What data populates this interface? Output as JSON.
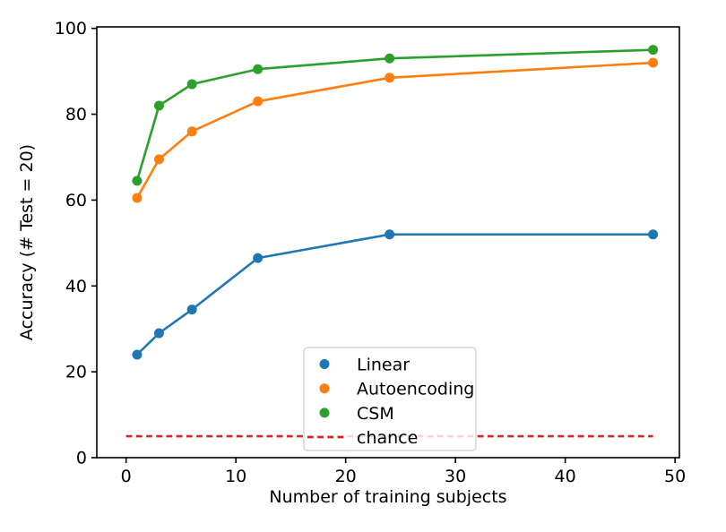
{
  "chart_data": {
    "type": "line",
    "title": "",
    "xlabel": "Number of training subjects",
    "ylabel": "Accuracy (# Test = 20)",
    "x": [
      1,
      3,
      6,
      12,
      24,
      48
    ],
    "series": [
      {
        "name": "Linear",
        "color": "#1f77b4",
        "marker": "circle",
        "line": "solid",
        "values": [
          24,
          29,
          34.5,
          46.5,
          52,
          52
        ]
      },
      {
        "name": "Autoencoding",
        "color": "#ff7f0e",
        "marker": "circle",
        "line": "solid",
        "values": [
          60.5,
          69.5,
          76,
          83,
          88.5,
          92
        ]
      },
      {
        "name": "CSM",
        "color": "#2ca02c",
        "marker": "circle",
        "line": "solid",
        "values": [
          64.5,
          82,
          87,
          90.5,
          93,
          95
        ]
      }
    ],
    "reference_line": {
      "name": "chance",
      "color": "#d62728",
      "line": "dashed",
      "value": 5,
      "x_span": [
        0,
        48
      ]
    },
    "xticks": [
      "0",
      "10",
      "20",
      "30",
      "40",
      "50"
    ],
    "xtick_values": [
      0,
      10,
      20,
      30,
      40,
      50
    ],
    "yticks": [
      "0",
      "20",
      "40",
      "60",
      "80",
      "100"
    ],
    "ytick_values": [
      0,
      20,
      40,
      60,
      80,
      100
    ],
    "xlim": [
      -2.67,
      50.4
    ],
    "ylim": [
      0,
      100.35
    ],
    "grid": false,
    "legend": {
      "position": "lower-center-inside",
      "entries": [
        {
          "label": "Linear",
          "color": "#1f77b4",
          "handle": "dot"
        },
        {
          "label": "Autoencoding",
          "color": "#ff7f0e",
          "handle": "dot"
        },
        {
          "label": "CSM",
          "color": "#2ca02c",
          "handle": "dot"
        },
        {
          "label": "chance",
          "color": "#d62728",
          "handle": "dashed-line"
        }
      ]
    },
    "axis_color": "#000000",
    "text_color": "#000000",
    "background": "#ffffff"
  }
}
